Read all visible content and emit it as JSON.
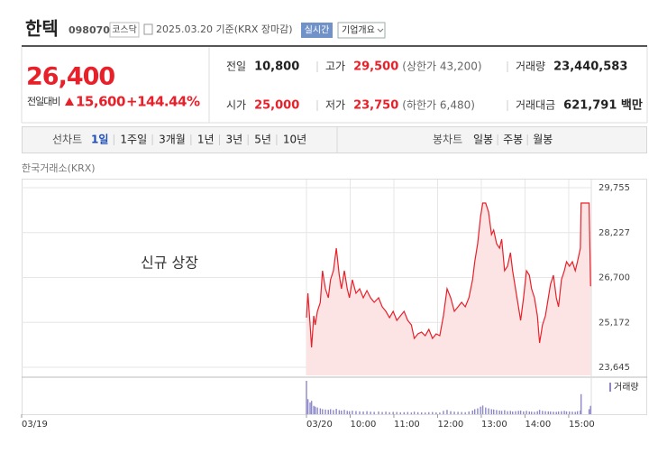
{
  "header": {
    "name": "한텍",
    "code": "098070",
    "market": "코스닥",
    "date": "2025.03.20 기준(KRX 장마감)",
    "realtime": "실시간",
    "company": "기업개요"
  },
  "quote": {
    "price": "26,400",
    "change_label": "전일대비",
    "change": "15,600",
    "change_rate": "+144.44%",
    "color": "#e8202a",
    "fields": [
      {
        "label": "전일",
        "value": "10,800"
      },
      {
        "label": "고가",
        "value": "29,500",
        "color": "#e8202a",
        "note": "(상한가 43,200)"
      },
      {
        "label": "거래량",
        "value": "23,440,583"
      },
      {
        "label": "시가",
        "value": "25,000",
        "color": "#e8202a"
      },
      {
        "label": "저가",
        "value": "23,750",
        "color": "#e8202a",
        "note": "(하한가 6,480)"
      },
      {
        "label": "거래대금",
        "value": "621,791 백만"
      }
    ]
  },
  "tabs": {
    "line": "선차트",
    "periods": [
      "1일",
      "1주일",
      "3개월",
      "1년",
      "3년",
      "5년",
      "10년"
    ],
    "selected": 0,
    "candle": "봉차트",
    "candle_periods": [
      "일봉",
      "주봉",
      "월봉"
    ]
  },
  "chart_data": {
    "type": "line",
    "source": "한국거래소(KRX)",
    "annotation": "신규 상장",
    "grid": true,
    "x": [
      0,
      2,
      5,
      7,
      10,
      12,
      15,
      19,
      22,
      26,
      30,
      33,
      37,
      41,
      45,
      48,
      52,
      56,
      59,
      63,
      68,
      73,
      78,
      83,
      88,
      93,
      99,
      104,
      109,
      114,
      119,
      124,
      129,
      134,
      139,
      144,
      148,
      153,
      158,
      163,
      168,
      173,
      178,
      183,
      188,
      193,
      198,
      203,
      208,
      213,
      218,
      223,
      228,
      231,
      235,
      239,
      242,
      246,
      250,
      254,
      257,
      261,
      265,
      268,
      272,
      276,
      280,
      283,
      287,
      291,
      294,
      298,
      302,
      306,
      309,
      313,
      317,
      320,
      324,
      328,
      332,
      335,
      339,
      343,
      346,
      350,
      354,
      357,
      361,
      365,
      369,
      372,
      376,
      377,
      388,
      390
    ],
    "xlim": [
      -391,
      391
    ],
    "xticks": [
      {
        "value": -391,
        "label": "03/19"
      },
      {
        "value": 0,
        "label": "03/20"
      },
      {
        "value": 60,
        "label": "10:00"
      },
      {
        "value": 120,
        "label": "11:00"
      },
      {
        "value": 180,
        "label": "12:00"
      },
      {
        "value": 240,
        "label": "13:00"
      },
      {
        "value": 300,
        "label": "14:00"
      },
      {
        "value": 360,
        "label": "15:00"
      }
    ],
    "ylim": [
      23370,
      29755
    ],
    "yticks": [
      {
        "value": 29755,
        "label": "29,755"
      },
      {
        "value": 28227,
        "label": "28,227"
      },
      {
        "value": 26700,
        "label": "26,700"
      },
      {
        "value": 25172,
        "label": "25,172"
      },
      {
        "value": 23645,
        "label": "23,645"
      }
    ],
    "y2lim": [
      0,
      2000000
    ],
    "series": [
      {
        "color": "#e8202a",
        "fill": "#fde4e4",
        "values": [
          25334,
          26163,
          25089,
          24321,
          25396,
          25089,
          25549,
          25856,
          26931,
          26317,
          26010,
          26624,
          26931,
          27698,
          26777,
          26317,
          26931,
          26317,
          26010,
          26624,
          26163,
          26317,
          26010,
          26255,
          26010,
          25856,
          26010,
          25703,
          25549,
          25334,
          25549,
          25242,
          25396,
          25549,
          25242,
          25089,
          24628,
          24782,
          24843,
          24720,
          24935,
          24628,
          24782,
          24720,
          25396,
          26317,
          26010,
          25549,
          25703,
          25856,
          25703,
          26010,
          26624,
          27238,
          27852,
          28773,
          29233,
          29233,
          28926,
          28159,
          28312,
          27852,
          27698,
          28005,
          26931,
          27084,
          27545,
          26931,
          26317,
          25703,
          25242,
          26010,
          26931,
          26777,
          26317,
          26010,
          25396,
          24475,
          25089,
          25396,
          26010,
          26470,
          26777,
          26010,
          25703,
          26624,
          26931,
          27238,
          27084,
          27238,
          26931,
          27238,
          27698,
          29233,
          29233,
          26400
        ]
      },
      {
        "name": "거래량",
        "color": "#8b87c9",
        "axis": "y2",
        "values": [
          2000000,
          900000,
          700000,
          800000,
          500000,
          450000,
          400000,
          350000,
          300000,
          280000,
          260000,
          300000,
          250000,
          320000,
          240000,
          220000,
          260000,
          200000,
          180000,
          210000,
          190000,
          170000,
          160000,
          180000,
          150000,
          140000,
          160000,
          130000,
          150000,
          120000,
          140000,
          130000,
          110000,
          120000,
          130000,
          100000,
          150000,
          120000,
          110000,
          100000,
          120000,
          130000,
          110000,
          100000,
          200000,
          260000,
          180000,
          150000,
          140000,
          130000,
          120000,
          160000,
          220000,
          300000,
          350000,
          450000,
          520000,
          400000,
          350000,
          300000,
          280000,
          250000,
          220000,
          200000,
          240000,
          180000,
          200000,
          160000,
          180000,
          200000,
          220000,
          170000,
          200000,
          160000,
          150000,
          140000,
          180000,
          260000,
          200000,
          180000,
          170000,
          160000,
          150000,
          140000,
          160000,
          180000,
          200000,
          170000,
          160000,
          150000,
          140000,
          180000,
          220000,
          1200000,
          300000,
          500000
        ]
      }
    ]
  }
}
